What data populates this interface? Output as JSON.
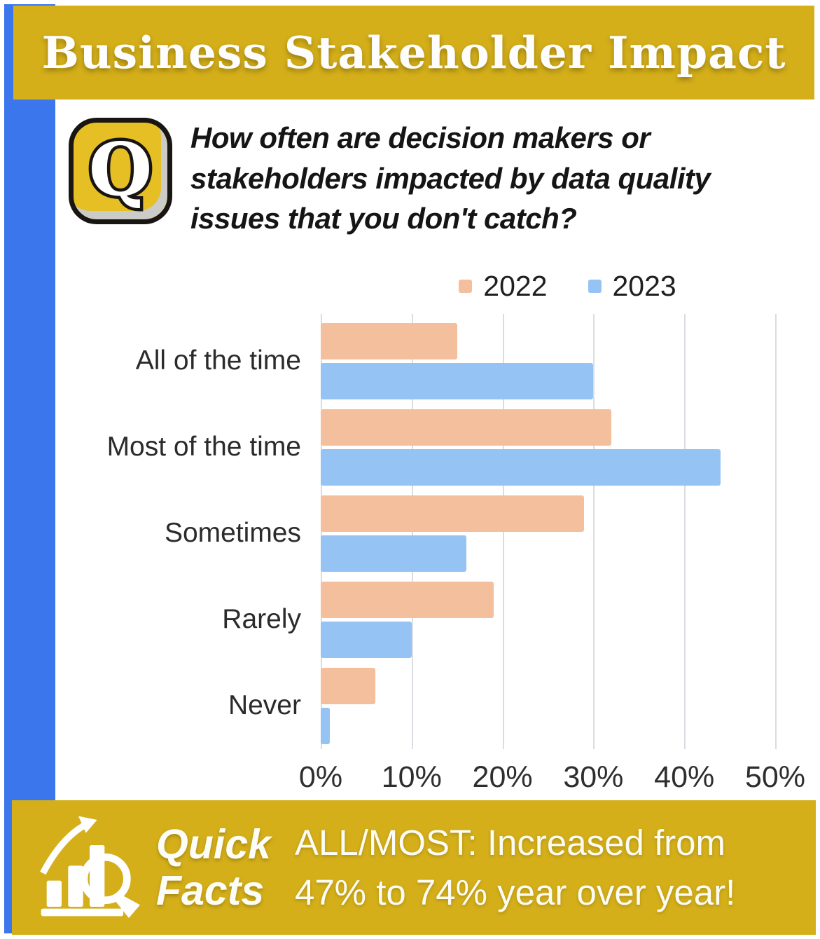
{
  "colors": {
    "brand_yellow": "#D4AF1A",
    "accent_blue": "#3B76ED",
    "series_2022": "#F4BF9D",
    "series_2023": "#95C3F4",
    "gridline": "#D9DCE0"
  },
  "header": {
    "title": "Business Stakeholder Impact"
  },
  "question": {
    "icon_letter": "Q",
    "text": "How often are decision makers or stakeholders impacted by data quality issues that you don't catch?"
  },
  "chart_data": {
    "type": "bar",
    "orientation": "horizontal",
    "title": "",
    "categories": [
      "All of the time",
      "Most of the time",
      "Sometimes",
      "Rarely",
      "Never"
    ],
    "series": [
      {
        "name": "2022",
        "color": "#F4BF9D",
        "values": [
          15,
          32,
          29,
          19,
          6
        ]
      },
      {
        "name": "2023",
        "color": "#95C3F4",
        "values": [
          30,
          44,
          16,
          10,
          1
        ]
      }
    ],
    "xlabel": "",
    "ylabel": "",
    "xlim": [
      0,
      50
    ],
    "x_ticks": [
      "0%",
      "10%",
      "20%",
      "30%",
      "40%",
      "50%"
    ],
    "grid": true,
    "legend_position": "top"
  },
  "footer": {
    "label": "Quick Facts",
    "label_line1": "Quick",
    "label_line2": "Facts",
    "fact": "ALL/MOST: Increased from 47% to 74% year over year!"
  }
}
